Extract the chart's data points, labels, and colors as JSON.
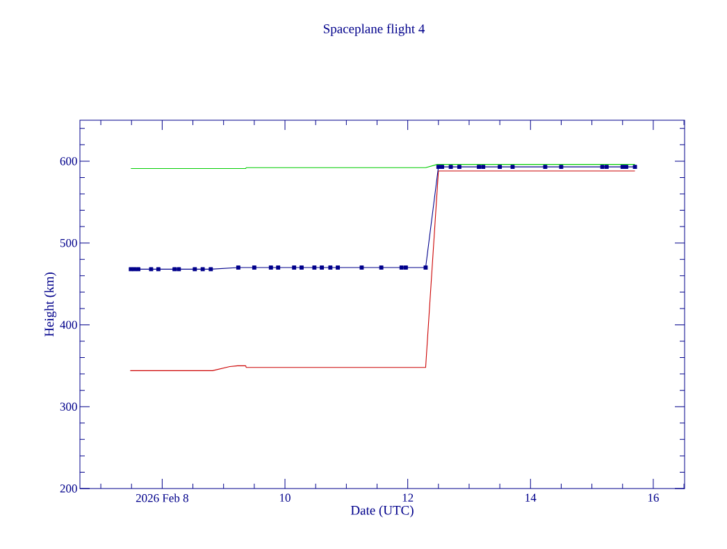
{
  "chart_data": {
    "type": "line",
    "title": "Spaceplane flight 4",
    "xlabel": "Date (UTC)",
    "ylabel": "Height (km)",
    "xlim": [
      "2026-02-06T15:50",
      "2026-02-16T12:15"
    ],
    "ylim": [
      200,
      650
    ],
    "xticks": [
      {
        "value": "2026-02-08",
        "label": "2026 Feb  8"
      },
      {
        "value": "2026-02-10",
        "label": "10"
      },
      {
        "value": "2026-02-12",
        "label": "12"
      },
      {
        "value": "2026-02-14",
        "label": "14"
      },
      {
        "value": "2026-02-16",
        "label": "16"
      }
    ],
    "yticks": [
      200,
      300,
      400,
      500,
      600
    ],
    "grid": false,
    "series": [
      {
        "color": "#00cc00",
        "x": [
          "2026-02-07T11:45",
          "2026-02-09T08:40",
          "2026-02-09T08:50",
          "2026-02-12T07:00",
          "2026-02-12T11:30",
          "2026-02-15T16:50"
        ],
        "values": [
          591,
          591,
          592,
          592,
          596,
          596
        ]
      },
      {
        "color": "#cc0000",
        "x": [
          "2026-02-07T11:30",
          "2026-02-08T19:40",
          "2026-02-09T02:25",
          "2026-02-09T05:30",
          "2026-02-09T08:40",
          "2026-02-09T08:50",
          "2026-02-12T07:00",
          "2026-02-12T12:00",
          "2026-02-15T16:50"
        ],
        "values": [
          344,
          344,
          349,
          350,
          350,
          348,
          348,
          588,
          588
        ]
      },
      {
        "color": "#00008b",
        "marker": "square",
        "x": [
          "2026-02-07T11:45",
          "2026-02-07T13:10",
          "2026-02-07T14:40",
          "2026-02-07T19:40",
          "2026-02-07T22:30",
          "2026-02-08T04:50",
          "2026-02-08T06:30",
          "2026-02-08T12:45",
          "2026-02-08T15:50",
          "2026-02-08T19:00",
          "2026-02-09T05:45",
          "2026-02-09T12:00",
          "2026-02-09T18:30",
          "2026-02-09T21:20",
          "2026-02-10T03:35",
          "2026-02-10T06:30",
          "2026-02-10T11:30",
          "2026-02-10T14:25",
          "2026-02-10T17:45",
          "2026-02-10T20:40",
          "2026-02-11T06:00",
          "2026-02-11T13:40",
          "2026-02-11T21:35",
          "2026-02-11T23:15",
          "2026-02-12T07:00",
          "2026-02-12T12:00",
          "2026-02-12T13:25",
          "2026-02-12T16:50",
          "2026-02-12T20:10",
          "2026-02-13T03:50",
          "2026-02-13T05:30",
          "2026-02-13T12:00",
          "2026-02-13T17:00",
          "2026-02-14T05:45",
          "2026-02-14T12:00",
          "2026-02-15T04:05",
          "2026-02-15T05:45",
          "2026-02-15T12:00",
          "2026-02-15T13:25",
          "2026-02-15T16:50"
        ],
        "values": [
          468,
          468,
          468,
          468,
          468,
          468,
          468,
          468,
          468,
          468,
          470,
          470,
          470,
          470,
          470,
          470,
          470,
          470,
          470,
          470,
          470,
          470,
          470,
          470,
          470,
          593,
          593,
          593,
          593,
          593,
          593,
          593,
          593,
          593,
          593,
          593,
          593,
          593,
          593,
          593
        ]
      }
    ]
  }
}
